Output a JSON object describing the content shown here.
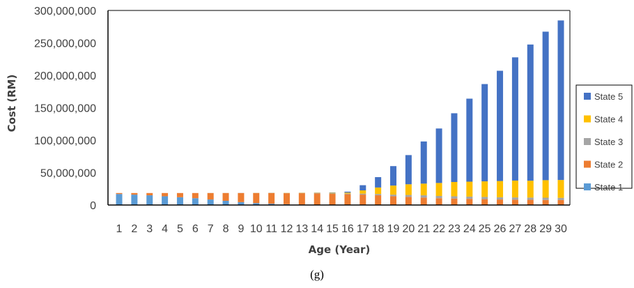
{
  "chart_data": {
    "type": "bar",
    "stacked": true,
    "xlabel": "Age (Year)",
    "ylabel": "Cost (RM)",
    "ylim": [
      0,
      300000000
    ],
    "yticks": [
      0,
      50000000,
      100000000,
      150000000,
      200000000,
      250000000,
      300000000
    ],
    "ytick_labels": [
      "0",
      "50,000,000",
      "100,000,000",
      "150,000,000",
      "200,000,000",
      "250,000,000",
      "300,000,000"
    ],
    "categories": [
      "1",
      "2",
      "3",
      "4",
      "5",
      "6",
      "7",
      "8",
      "9",
      "10",
      "11",
      "12",
      "13",
      "14",
      "15",
      "16",
      "17",
      "18",
      "19",
      "20",
      "21",
      "22",
      "23",
      "24",
      "25",
      "26",
      "27",
      "28",
      "29",
      "30"
    ],
    "grid": false,
    "legend_position": "right",
    "series": [
      {
        "name": "State 1",
        "color": "#5B9BD5",
        "values": [
          17000000,
          16000000,
          15000000,
          13500000,
          12000000,
          10500000,
          8500000,
          6500000,
          4500000,
          3000000,
          2000000,
          1200000,
          700000,
          400000,
          200000,
          100000,
          50000,
          0,
          0,
          0,
          0,
          0,
          0,
          0,
          0,
          0,
          0,
          0,
          0,
          0
        ]
      },
      {
        "name": "State 2",
        "color": "#ED7D31",
        "values": [
          1500000,
          2500000,
          3500000,
          5000000,
          6500000,
          8000000,
          10000000,
          12000000,
          14000000,
          15500000,
          16500000,
          17000000,
          17500000,
          17500000,
          17000000,
          16500000,
          16000000,
          15000000,
          13500000,
          12500000,
          11500000,
          10500000,
          10000000,
          9500000,
          9000000,
          8500000,
          8200000,
          8000000,
          7800000,
          7600000
        ]
      },
      {
        "name": "State 3",
        "color": "#A5A5A5",
        "values": [
          0,
          0,
          0,
          0,
          0,
          0,
          100000,
          100000,
          200000,
          200000,
          300000,
          400000,
          500000,
          700000,
          800000,
          1000000,
          1500000,
          2000000,
          2500000,
          3000000,
          3500000,
          3500000,
          3500000,
          3500000,
          3500000,
          3500000,
          3500000,
          3500000,
          3500000,
          3500000
        ]
      },
      {
        "name": "State 4",
        "color": "#FFC000",
        "values": [
          0,
          0,
          0,
          0,
          0,
          0,
          0,
          0,
          0,
          100000,
          100000,
          200000,
          300000,
          500000,
          800000,
          1500000,
          5000000,
          10000000,
          14000000,
          16500000,
          18000000,
          20000000,
          22000000,
          23000000,
          24000000,
          25000000,
          26000000,
          26000000,
          27000000,
          27500000
        ]
      },
      {
        "name": "State 5",
        "color": "#4472C4",
        "values": [
          0,
          0,
          0,
          0,
          0,
          0,
          0,
          0,
          0,
          0,
          0,
          0,
          0,
          200000,
          500000,
          1500000,
          8000000,
          16000000,
          30000000,
          45000000,
          65000000,
          84000000,
          106000000,
          128000000,
          150000000,
          170000000,
          190000000,
          210000000,
          229000000,
          246000000
        ]
      }
    ]
  },
  "caption": "(g)"
}
